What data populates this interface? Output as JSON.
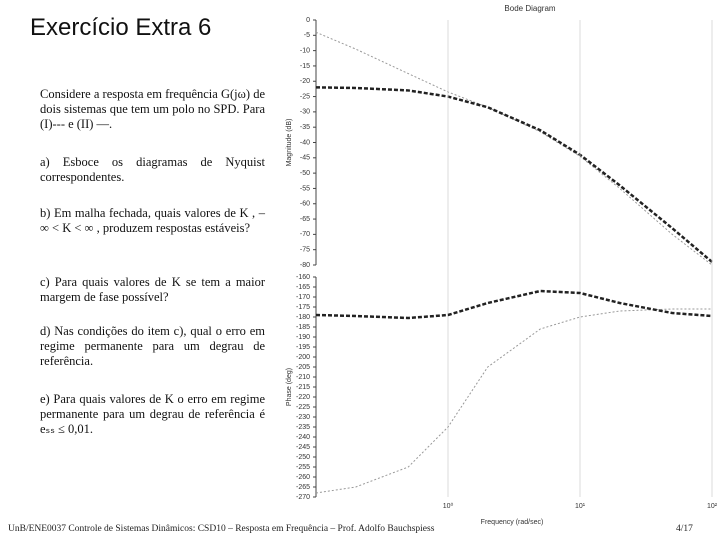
{
  "slide": {
    "title": "Exercício Extra 6",
    "paragraphs": [
      "Considere a resposta em frequência G(jω) de dois sistemas que tem um polo no SPD. Para (I)--- e (II) —.",
      "a) Esboce os diagramas de Nyquist correspondentes.",
      "b) Em malha fechada, quais valores de K , – ∞ < K < ∞ , produzem respostas estáveis?",
      "c) Para quais valores de K se tem a maior margem de fase possível?",
      "d) Nas condições do item c), qual o erro em regime permanente para um degrau de referência.",
      "e) Para quais valores de K o erro em regime permanente para um degrau de referência é eₛₛ ≤ 0,01."
    ],
    "footer": "UnB/ENE0037 Controle de Sistemas Dinâmicos: CSD10 – Resposta em Frequência – Prof. Adolfo Bauchspiess",
    "page": "4/17"
  },
  "chart_data": [
    {
      "type": "line",
      "title": "Bode Diagram",
      "y_label": "Magnitude (dB)",
      "xscale": "log",
      "x": [
        0.1,
        0.2,
        0.5,
        1,
        2,
        5,
        10,
        20,
        50,
        100
      ],
      "xlim": [
        0.1,
        100
      ],
      "ylim": [
        -80,
        0
      ],
      "yticks": [
        0,
        -5,
        -10,
        -15,
        -20,
        -25,
        -30,
        -35,
        -40,
        -45,
        -50,
        -55,
        -60,
        -65,
        -70,
        -75,
        -80
      ],
      "series": [
        {
          "color": "#999999",
          "dash": "2,2",
          "width": 1,
          "values": [
            -4,
            -9.5,
            -17.5,
            -23.5,
            -28.5,
            -36.5,
            -44.5,
            -55,
            -70,
            -80
          ]
        },
        {
          "color": "#222222",
          "dash": "4,2",
          "width": 2.5,
          "values": [
            -22,
            -22.2,
            -23,
            -25,
            -28.5,
            -36,
            -44,
            -54,
            -68,
            -79
          ]
        }
      ]
    },
    {
      "type": "line",
      "y_label": "Phase (deg)",
      "x_label": "Frequency (rad/sec)",
      "xscale": "log",
      "grid": true,
      "x": [
        0.1,
        0.2,
        0.5,
        1,
        2,
        5,
        10,
        20,
        50,
        100
      ],
      "xlim": [
        0.1,
        100
      ],
      "ylim": [
        -270,
        -160
      ],
      "xticks": [
        {
          "value": 1,
          "label": "10⁰"
        },
        {
          "value": 10,
          "label": "10¹"
        },
        {
          "value": 100,
          "label": "10²"
        }
      ],
      "yticks": [
        -160,
        -165,
        -170,
        -175,
        -180,
        -185,
        -190,
        -195,
        -200,
        -205,
        -210,
        -215,
        -220,
        -225,
        -230,
        -235,
        -240,
        -245,
        -250,
        -255,
        -260,
        -265,
        -270
      ],
      "series": [
        {
          "color": "#999999",
          "dash": "2,2",
          "width": 1,
          "values": [
            -268,
            -265,
            -255,
            -235,
            -205,
            -186,
            -180,
            -177,
            -176,
            -176
          ]
        },
        {
          "color": "#222222",
          "dash": "4,2",
          "width": 2.5,
          "values": [
            -179,
            -179.5,
            -180.5,
            -179,
            -173,
            -167,
            -168,
            -173,
            -178,
            -179.5
          ]
        }
      ]
    }
  ]
}
